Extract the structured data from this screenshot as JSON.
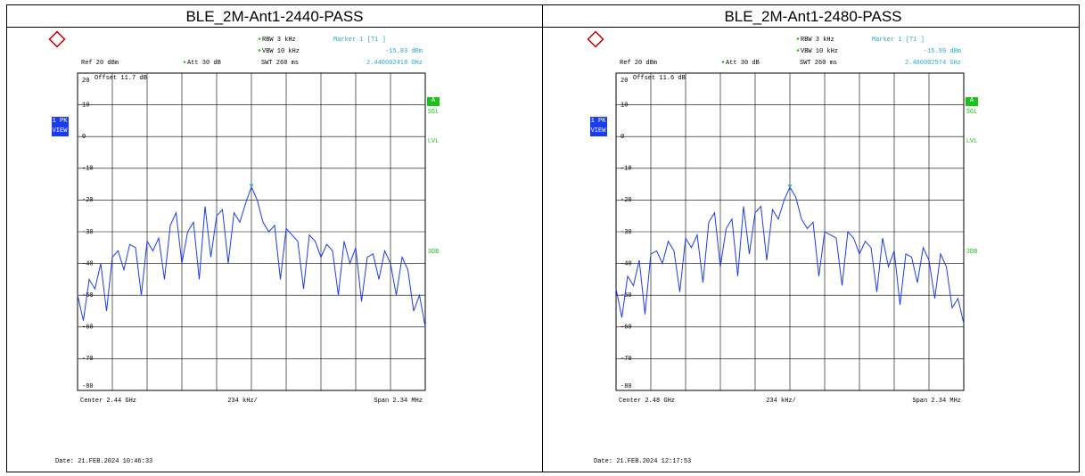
{
  "chart_data": [
    {
      "type": "line",
      "title": "BLE_2M-Ant1-2440-PASS",
      "ylim": [
        -80,
        20
      ],
      "yticks": [
        20,
        10,
        0,
        -10,
        -20,
        -30,
        -40,
        -50,
        -60,
        -70,
        -80
      ],
      "grid": true,
      "series": [
        {
          "name": "1 PK VIEW",
          "color": "#1a3cf0",
          "values": [
            -50,
            -58,
            -45,
            -48,
            -40,
            -55,
            -38,
            -36,
            -42,
            -34,
            -35,
            -50,
            -33,
            -36,
            -32,
            -45,
            -28,
            -24,
            -40,
            -30,
            -27,
            -45,
            -22,
            -38,
            -25,
            -23,
            -40,
            -24,
            -27,
            -21,
            -15.83,
            -20,
            -27,
            -30,
            -28,
            -45,
            -29,
            -31,
            -33,
            -48,
            -31,
            -33,
            -38,
            -34,
            -36,
            -50,
            -33,
            -40,
            -35,
            -52,
            -38,
            -37,
            -45,
            -36,
            -40,
            -50,
            -38,
            -42,
            -55,
            -50,
            -60
          ]
        }
      ],
      "annotations": {
        "rbw": "RBW 3 kHz",
        "vbw": "VBW 10 kHz",
        "swt": "SWT 260 ms",
        "marker": "Marker 1 [T1 ]",
        "marker_level": "-15.83 dBm",
        "marker_freq": "2.440002418 GHz",
        "ref": "Ref  20 dBm",
        "att": "Att  30 dB",
        "offset": "Offset  11.7 dB",
        "a": "A",
        "sgl": "SGL",
        "pk": "1 PK",
        "view": "VIEW",
        "lvl": "LVL",
        "db3": "3DB",
        "center": "Center  2.44 GHz",
        "div": "234 kHz/",
        "span": "Span  2.34 MHz",
        "date": "Date: 21.FEB.2024  10:46:33"
      }
    },
    {
      "type": "line",
      "title": "BLE_2M-Ant1-2480-PASS",
      "ylim": [
        -80,
        20
      ],
      "yticks": [
        20,
        10,
        0,
        -10,
        -20,
        -30,
        -40,
        -50,
        -60,
        -70,
        -80
      ],
      "grid": true,
      "series": [
        {
          "name": "1 PK VIEW",
          "color": "#1a3cf0",
          "values": [
            -48,
            -57,
            -44,
            -47,
            -39,
            -56,
            -37,
            -36,
            -40,
            -33,
            -36,
            -49,
            -32,
            -35,
            -31,
            -46,
            -27,
            -24,
            -41,
            -29,
            -26,
            -44,
            -22,
            -37,
            -24,
            -22,
            -39,
            -23,
            -26,
            -20,
            -15.99,
            -19,
            -26,
            -29,
            -27,
            -44,
            -30,
            -31,
            -32,
            -47,
            -30,
            -32,
            -37,
            -33,
            -35,
            -49,
            -32,
            -41,
            -36,
            -53,
            -37,
            -38,
            -46,
            -35,
            -39,
            -51,
            -37,
            -41,
            -54,
            -51,
            -59
          ]
        }
      ],
      "annotations": {
        "rbw": "RBW 3 kHz",
        "vbw": "VBW 10 kHz",
        "swt": "SWT 260 ms",
        "marker": "Marker 1 [T1 ]",
        "marker_level": "-15.99 dBm",
        "marker_freq": "2.480002574 GHz",
        "ref": "Ref  20 dBm",
        "att": "Att  30 dB",
        "offset": "Offset  11.6 dB",
        "a": "A",
        "sgl": "SGL",
        "pk": "1 PK",
        "view": "VIEW",
        "lvl": "LVL",
        "db3": "3DB",
        "center": "Center  2.48 GHz",
        "div": "234 kHz/",
        "span": "Span  2.34 MHz",
        "date": "Date: 21.FEB.2024  12:17:53"
      }
    }
  ]
}
